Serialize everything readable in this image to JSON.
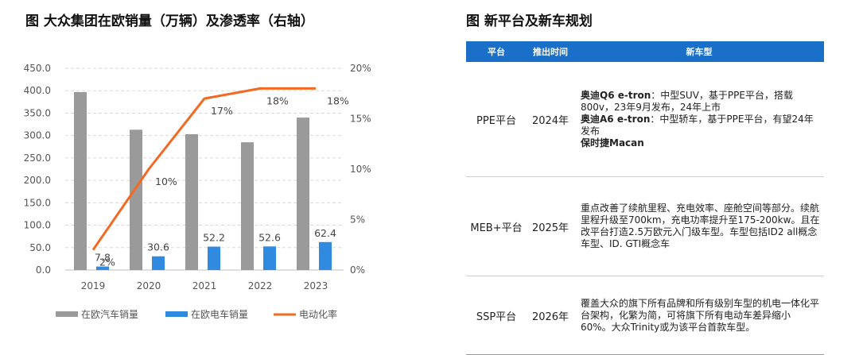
{
  "left_title": "图 大众集团在欧销量（万辆）及渗透率（右轴）",
  "right_title": "图 新平台及新车规划",
  "chart_data": {
    "type": "bar",
    "categories": [
      "2019",
      "2020",
      "2021",
      "2022",
      "2023"
    ],
    "series": [
      {
        "name": "在欧汽车销量",
        "kind": "bar",
        "axis": "left",
        "color": "#9a9a9a",
        "values": [
          397,
          313,
          303,
          285,
          340
        ],
        "labels": [
          "",
          "",
          "",
          "",
          ""
        ]
      },
      {
        "name": "在欧电车销量",
        "kind": "bar",
        "axis": "left",
        "color": "#2f8ae0",
        "values": [
          7.8,
          30.6,
          52.2,
          52.6,
          62.4
        ],
        "labels": [
          "7.8",
          "30.6",
          "52.2",
          "52.6",
          "62.4"
        ]
      },
      {
        "name": "电动化率",
        "kind": "line",
        "axis": "right",
        "color": "#f26a22",
        "values": [
          2,
          10,
          17,
          18,
          18
        ],
        "labels": [
          "2%",
          "10%",
          "17%",
          "18%",
          "18%"
        ]
      }
    ],
    "y_left": {
      "min": 0,
      "max": 450,
      "ticks": [
        "0.0",
        "50.0",
        "100.0",
        "150.0",
        "200.0",
        "250.0",
        "300.0",
        "350.0",
        "400.0",
        "450.0"
      ]
    },
    "y_right": {
      "min": 0,
      "max": 20,
      "ticks": [
        "0%",
        "5%",
        "10%",
        "15%",
        "20%"
      ]
    },
    "grid": true,
    "legend_position": "bottom"
  },
  "table": {
    "headers": [
      "平台",
      "推出时间",
      "新车型"
    ],
    "rows": [
      {
        "platform": "PPE平台",
        "time": "2024年",
        "lines": [
          {
            "bold": "奥迪Q6 e-tron",
            "text": "：中型SUV，基于PPE平台，搭载800v，23年9月发布，24年上市"
          },
          {
            "bold": "奥迪A6 e-tron",
            "text": "：中型轿车，基于PPE平台，有望24年发布"
          },
          {
            "bold": "保时捷Macan",
            "text": ""
          }
        ]
      },
      {
        "platform": "MEB+平台",
        "time": "2025年",
        "lines": [
          {
            "bold": "",
            "text": "重点改善了续航里程、充电效率、座舱空间等部分。续航里程升级至700km，充电功率提升至175-200kw。且在改平台打造2.5万欧元入门级车型。车型包括ID2 all概念车型、ID. GTI概念车"
          }
        ]
      },
      {
        "platform": "SSP平台",
        "time": "2026年",
        "lines": [
          {
            "bold": "",
            "text": "覆盖大众的旗下所有品牌和所有级别车型的机电一体化平台架构，化繁为简，可将旗下所有电动车差异缩小60%。大众Trinity或为该平台首款车型。"
          }
        ]
      }
    ]
  }
}
